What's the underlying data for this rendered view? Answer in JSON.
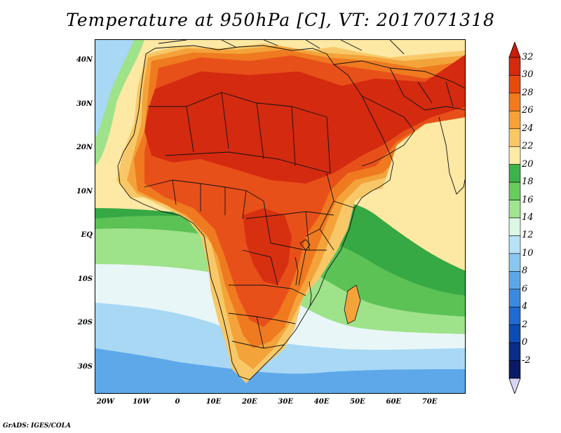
{
  "title": "Temperature at 950hPa [C], VT: 2017071318",
  "credit": "GrADS: IGES/COLA",
  "map": {
    "lon_range": [
      -23,
      80
    ],
    "lat_range": [
      -36,
      45
    ],
    "lat_labels": [
      {
        "text": "40N",
        "lat": 40
      },
      {
        "text": "30N",
        "lat": 30
      },
      {
        "text": "20N",
        "lat": 20
      },
      {
        "text": "10N",
        "lat": 10
      },
      {
        "text": "EQ",
        "lat": 0
      },
      {
        "text": "10S",
        "lat": -10
      },
      {
        "text": "20S",
        "lat": -20
      },
      {
        "text": "30S",
        "lat": -30
      }
    ],
    "lon_labels": [
      {
        "text": "20W",
        "lon": -20
      },
      {
        "text": "10W",
        "lon": -10
      },
      {
        "text": "0",
        "lon": 0
      },
      {
        "text": "10E",
        "lon": 10
      },
      {
        "text": "20E",
        "lon": 20
      },
      {
        "text": "30E",
        "lon": 30
      },
      {
        "text": "40E",
        "lon": 40
      },
      {
        "text": "50E",
        "lon": 50
      },
      {
        "text": "60E",
        "lon": 60
      },
      {
        "text": "70E",
        "lon": 70
      }
    ]
  },
  "colorbar": {
    "levels": [
      {
        "label": "32",
        "color": "#d32a10"
      },
      {
        "label": "30",
        "color": "#e84a0e"
      },
      {
        "label": "28",
        "color": "#f27a1c"
      },
      {
        "label": "26",
        "color": "#f5a238"
      },
      {
        "label": "24",
        "color": "#f9c866"
      },
      {
        "label": "22",
        "color": "#fdeaa4"
      },
      {
        "label": "20",
        "color": "#3cb24a"
      },
      {
        "label": "18",
        "color": "#67cc5c"
      },
      {
        "label": "16",
        "color": "#a0e690"
      },
      {
        "label": "14",
        "color": "#dcf7e4"
      },
      {
        "label": "12",
        "color": "#b8e2f7"
      },
      {
        "label": "10",
        "color": "#8ac6f1"
      },
      {
        "label": "8",
        "color": "#5ba7e8"
      },
      {
        "label": "6",
        "color": "#3a8ade"
      },
      {
        "label": "4",
        "color": "#1f6bd1"
      },
      {
        "label": "2",
        "color": "#0d4cb4"
      },
      {
        "label": "0",
        "color": "#0a2d86"
      },
      {
        "label": "-2",
        "color": "#0a1a66"
      }
    ],
    "top_color": "#c81e0c",
    "bottom_color": "#d8d4f4"
  },
  "colors": {
    "ocean_cold": "#5ea8ea",
    "ocean_cool": "#a8d8f4",
    "ocean_mild": "#e8f6f8",
    "green_dark": "#36a844",
    "green_mid": "#5cc256",
    "green_light": "#9ee28a",
    "warm_pale": "#fde8a4",
    "warm_yellow": "#f8c868",
    "orange": "#f3a33a",
    "orange_dark": "#ef7a20",
    "red_orange": "#e8501a",
    "red": "#d32a10",
    "border": "#111111"
  }
}
